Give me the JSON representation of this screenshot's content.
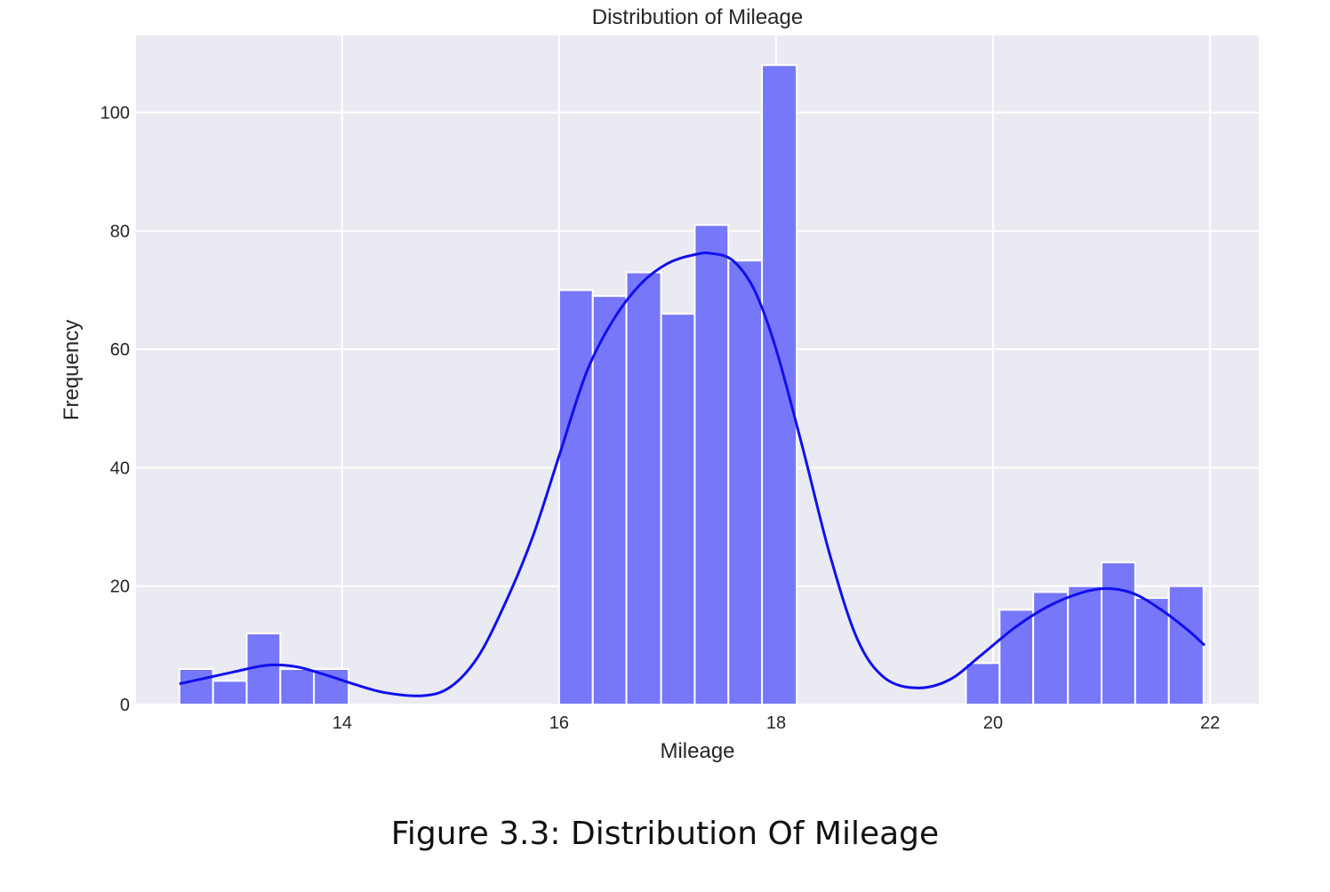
{
  "caption": "Figure 3.3: Distribution Of Mileage",
  "chart_data": {
    "type": "histogram",
    "title": "Distribution of Mileage",
    "xlabel": "Mileage",
    "ylabel": "Frequency",
    "xlim": [
      12.1,
      22.45
    ],
    "ylim": [
      0,
      113
    ],
    "xticks": [
      14,
      16,
      18,
      20,
      22
    ],
    "yticks": [
      0,
      20,
      40,
      60,
      80,
      100
    ],
    "grid": true,
    "bar_color": "#7777f9",
    "bar_edge_color": "#ffffff",
    "kde_color": "#1010ee",
    "background_color": "#eaeaf2",
    "bins": [
      {
        "x0": 12.5,
        "x1": 12.81,
        "count": 6
      },
      {
        "x0": 12.81,
        "x1": 13.12,
        "count": 4
      },
      {
        "x0": 13.12,
        "x1": 13.43,
        "count": 12
      },
      {
        "x0": 13.43,
        "x1": 13.74,
        "count": 6
      },
      {
        "x0": 13.74,
        "x1": 14.06,
        "count": 6
      },
      {
        "x0": 16.0,
        "x1": 16.31,
        "count": 70
      },
      {
        "x0": 16.31,
        "x1": 16.62,
        "count": 69
      },
      {
        "x0": 16.62,
        "x1": 16.94,
        "count": 73
      },
      {
        "x0": 16.94,
        "x1": 17.25,
        "count": 66
      },
      {
        "x0": 17.25,
        "x1": 17.56,
        "count": 81
      },
      {
        "x0": 17.56,
        "x1": 17.87,
        "count": 75
      },
      {
        "x0": 17.87,
        "x1": 18.19,
        "count": 108
      },
      {
        "x0": 19.75,
        "x1": 20.06,
        "count": 7
      },
      {
        "x0": 20.06,
        "x1": 20.37,
        "count": 16
      },
      {
        "x0": 20.37,
        "x1": 20.69,
        "count": 19
      },
      {
        "x0": 20.69,
        "x1": 21.0,
        "count": 20
      },
      {
        "x0": 21.0,
        "x1": 21.31,
        "count": 24
      },
      {
        "x0": 21.31,
        "x1": 21.62,
        "count": 18
      },
      {
        "x0": 21.62,
        "x1": 21.94,
        "count": 20
      }
    ],
    "kde": {
      "x": [
        12.5,
        12.75,
        13.0,
        13.25,
        13.4,
        13.6,
        13.85,
        14.1,
        14.4,
        14.75,
        15.0,
        15.25,
        15.5,
        15.75,
        16.0,
        16.25,
        16.5,
        16.75,
        17.0,
        17.25,
        17.4,
        17.6,
        17.8,
        18.0,
        18.25,
        18.5,
        18.75,
        19.0,
        19.3,
        19.6,
        19.9,
        20.2,
        20.5,
        20.8,
        21.05,
        21.3,
        21.55,
        21.8,
        21.95
      ],
      "y": [
        3.5,
        4.5,
        5.5,
        6.5,
        6.7,
        6.3,
        5.0,
        3.5,
        2.0,
        1.5,
        3.0,
        8.0,
        17.0,
        28.0,
        42.0,
        56.0,
        65.0,
        71.0,
        74.5,
        76.0,
        76.2,
        75.0,
        70.0,
        60.0,
        43.0,
        25.0,
        11.0,
        4.5,
        2.8,
        4.2,
        8.5,
        13.0,
        16.5,
        18.8,
        19.6,
        18.7,
        16.0,
        12.5,
        10.0
      ]
    }
  }
}
